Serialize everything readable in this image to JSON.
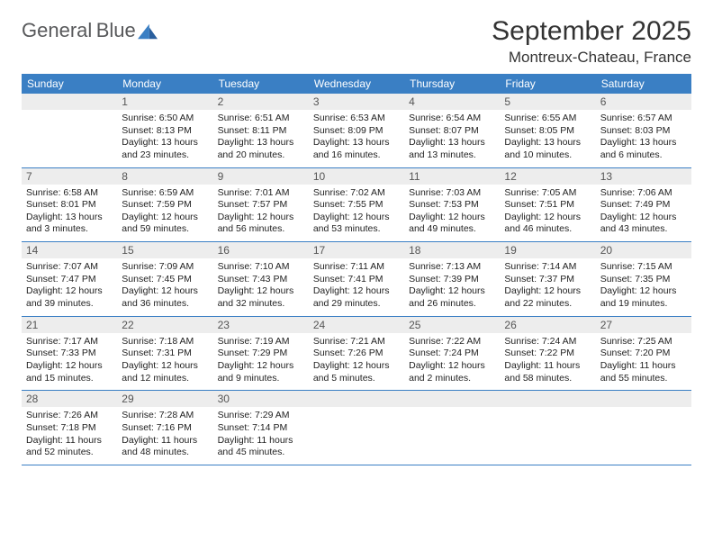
{
  "logo": {
    "line1": "General",
    "line2": "Blue"
  },
  "title": "September 2025",
  "location": "Montreux-Chateau, France",
  "colors": {
    "header_bg": "#3a7fc4",
    "header_text": "#ffffff",
    "daynum_bg": "#ededed",
    "border": "#3a7fc4",
    "body_text": "#222222",
    "logo_gray": "#58595b",
    "logo_blue": "#3a7fc4"
  },
  "weekdays": [
    "Sunday",
    "Monday",
    "Tuesday",
    "Wednesday",
    "Thursday",
    "Friday",
    "Saturday"
  ],
  "weeks": [
    [
      {
        "blank": true
      },
      {
        "day": "1",
        "sunrise": "6:50 AM",
        "sunset": "8:13 PM",
        "daylight": "13 hours and 23 minutes."
      },
      {
        "day": "2",
        "sunrise": "6:51 AM",
        "sunset": "8:11 PM",
        "daylight": "13 hours and 20 minutes."
      },
      {
        "day": "3",
        "sunrise": "6:53 AM",
        "sunset": "8:09 PM",
        "daylight": "13 hours and 16 minutes."
      },
      {
        "day": "4",
        "sunrise": "6:54 AM",
        "sunset": "8:07 PM",
        "daylight": "13 hours and 13 minutes."
      },
      {
        "day": "5",
        "sunrise": "6:55 AM",
        "sunset": "8:05 PM",
        "daylight": "13 hours and 10 minutes."
      },
      {
        "day": "6",
        "sunrise": "6:57 AM",
        "sunset": "8:03 PM",
        "daylight": "13 hours and 6 minutes."
      }
    ],
    [
      {
        "day": "7",
        "sunrise": "6:58 AM",
        "sunset": "8:01 PM",
        "daylight": "13 hours and 3 minutes."
      },
      {
        "day": "8",
        "sunrise": "6:59 AM",
        "sunset": "7:59 PM",
        "daylight": "12 hours and 59 minutes."
      },
      {
        "day": "9",
        "sunrise": "7:01 AM",
        "sunset": "7:57 PM",
        "daylight": "12 hours and 56 minutes."
      },
      {
        "day": "10",
        "sunrise": "7:02 AM",
        "sunset": "7:55 PM",
        "daylight": "12 hours and 53 minutes."
      },
      {
        "day": "11",
        "sunrise": "7:03 AM",
        "sunset": "7:53 PM",
        "daylight": "12 hours and 49 minutes."
      },
      {
        "day": "12",
        "sunrise": "7:05 AM",
        "sunset": "7:51 PM",
        "daylight": "12 hours and 46 minutes."
      },
      {
        "day": "13",
        "sunrise": "7:06 AM",
        "sunset": "7:49 PM",
        "daylight": "12 hours and 43 minutes."
      }
    ],
    [
      {
        "day": "14",
        "sunrise": "7:07 AM",
        "sunset": "7:47 PM",
        "daylight": "12 hours and 39 minutes."
      },
      {
        "day": "15",
        "sunrise": "7:09 AM",
        "sunset": "7:45 PM",
        "daylight": "12 hours and 36 minutes."
      },
      {
        "day": "16",
        "sunrise": "7:10 AM",
        "sunset": "7:43 PM",
        "daylight": "12 hours and 32 minutes."
      },
      {
        "day": "17",
        "sunrise": "7:11 AM",
        "sunset": "7:41 PM",
        "daylight": "12 hours and 29 minutes."
      },
      {
        "day": "18",
        "sunrise": "7:13 AM",
        "sunset": "7:39 PM",
        "daylight": "12 hours and 26 minutes."
      },
      {
        "day": "19",
        "sunrise": "7:14 AM",
        "sunset": "7:37 PM",
        "daylight": "12 hours and 22 minutes."
      },
      {
        "day": "20",
        "sunrise": "7:15 AM",
        "sunset": "7:35 PM",
        "daylight": "12 hours and 19 minutes."
      }
    ],
    [
      {
        "day": "21",
        "sunrise": "7:17 AM",
        "sunset": "7:33 PM",
        "daylight": "12 hours and 15 minutes."
      },
      {
        "day": "22",
        "sunrise": "7:18 AM",
        "sunset": "7:31 PM",
        "daylight": "12 hours and 12 minutes."
      },
      {
        "day": "23",
        "sunrise": "7:19 AM",
        "sunset": "7:29 PM",
        "daylight": "12 hours and 9 minutes."
      },
      {
        "day": "24",
        "sunrise": "7:21 AM",
        "sunset": "7:26 PM",
        "daylight": "12 hours and 5 minutes."
      },
      {
        "day": "25",
        "sunrise": "7:22 AM",
        "sunset": "7:24 PM",
        "daylight": "12 hours and 2 minutes."
      },
      {
        "day": "26",
        "sunrise": "7:24 AM",
        "sunset": "7:22 PM",
        "daylight": "11 hours and 58 minutes."
      },
      {
        "day": "27",
        "sunrise": "7:25 AM",
        "sunset": "7:20 PM",
        "daylight": "11 hours and 55 minutes."
      }
    ],
    [
      {
        "day": "28",
        "sunrise": "7:26 AM",
        "sunset": "7:18 PM",
        "daylight": "11 hours and 52 minutes."
      },
      {
        "day": "29",
        "sunrise": "7:28 AM",
        "sunset": "7:16 PM",
        "daylight": "11 hours and 48 minutes."
      },
      {
        "day": "30",
        "sunrise": "7:29 AM",
        "sunset": "7:14 PM",
        "daylight": "11 hours and 45 minutes."
      },
      {
        "blank": true
      },
      {
        "blank": true
      },
      {
        "blank": true
      },
      {
        "blank": true
      }
    ]
  ],
  "labels": {
    "sunrise": "Sunrise:",
    "sunset": "Sunset:",
    "daylight": "Daylight:"
  }
}
